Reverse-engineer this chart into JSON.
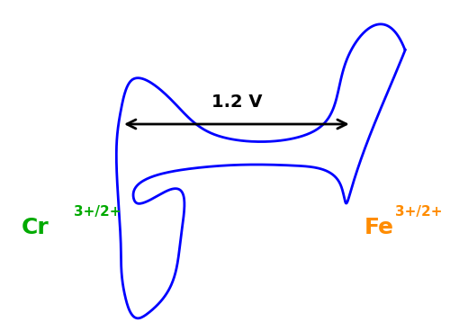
{
  "background_color": "#ffffff",
  "curve_color": "#0000ff",
  "curve_linewidth": 2.0,
  "arrow_color": "#000000",
  "arrow_label": "1.2 V",
  "arrow_label_color": "#000000",
  "arrow_label_fontsize": 14,
  "cr_label": "Cr",
  "cr_superscript": "3+/2+",
  "cr_label_color": "#00aa00",
  "cr_label_fontsize": 18,
  "fe_label": "Fe",
  "fe_superscript": "3+/2+",
  "fe_label_color": "#ff8c00",
  "fe_label_fontsize": 18,
  "figsize": [
    5.0,
    3.68
  ],
  "dpi": 100
}
